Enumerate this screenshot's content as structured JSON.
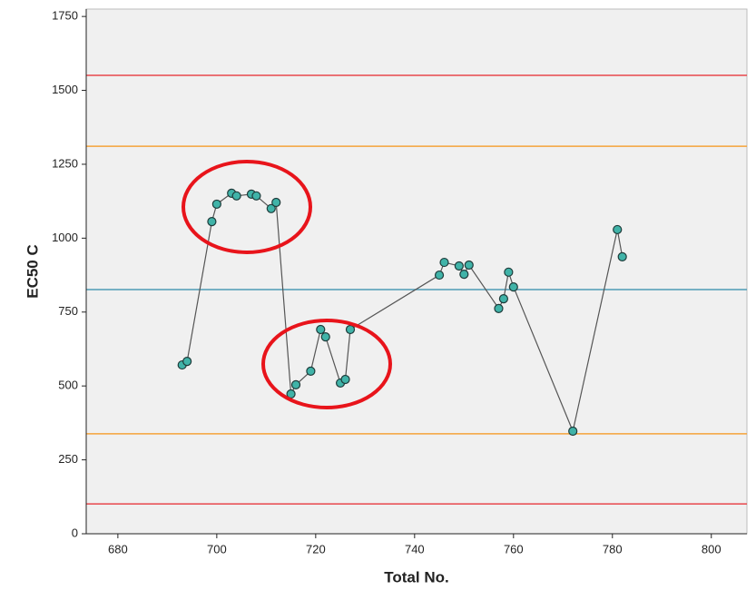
{
  "chart_data": {
    "type": "line",
    "x_label": "Total No.",
    "y_label": "EC50 C",
    "x": [
      693,
      694,
      699,
      700,
      703,
      704,
      707,
      708,
      711,
      712,
      715,
      716,
      719,
      721,
      722,
      725,
      726,
      727,
      745,
      746,
      749,
      750,
      751,
      757,
      758,
      759,
      760,
      772,
      781,
      782
    ],
    "series": [
      {
        "color": "#40b3a8",
        "values": [
          571,
          583,
          1056,
          1115,
          1152,
          1143,
          1149,
          1143,
          1100,
          1121,
          473,
          504,
          550,
          691,
          666,
          510,
          522,
          691,
          875,
          918,
          906,
          878,
          909,
          762,
          795,
          885,
          835,
          347,
          1029,
          937
        ]
      }
    ],
    "line_color": "#555555",
    "reference_lines": [
      {
        "value": 1551,
        "color": "#e8474c"
      },
      {
        "value": 1311,
        "color": "#f5a33a"
      },
      {
        "value": 826,
        "color": "#4d9bb5"
      },
      {
        "value": 338,
        "color": "#f5a33a"
      },
      {
        "value": 101,
        "color": "#e8474c"
      }
    ],
    "xlim": [
      673.6,
      807.2
    ],
    "ylim": [
      0,
      1775
    ],
    "xticks": [
      680,
      700,
      720,
      740,
      760,
      780,
      800
    ],
    "yticks": [
      0,
      250,
      500,
      750,
      1000,
      1250,
      1500,
      1750
    ]
  }
}
